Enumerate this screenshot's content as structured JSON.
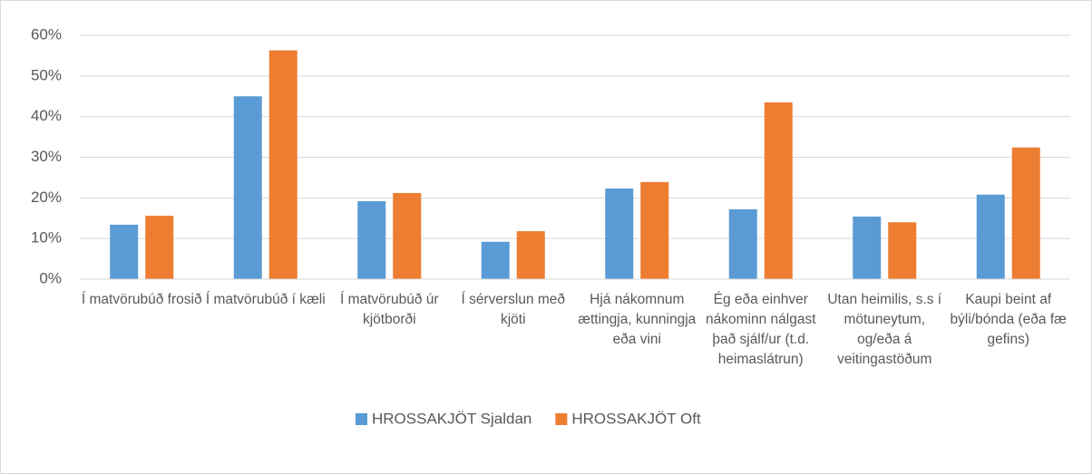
{
  "chart_data": {
    "type": "bar",
    "categories": [
      "Í matvörubúð frosið",
      "Í matvörubúð í kæli",
      "Í matvörubúð úr kjötborði",
      "Í sérverslun með kjöti",
      "Hjá nákomnum ættingja, kunningja eða vini",
      "Ég eða einhver nákominn nálgast það sjálf/ur (t.d. heimaslátrun)",
      "Utan heimilis, s.s í mötuneytum, og/eða á veitingastöðum",
      "Kaupi beint af býli/bónda (eða fæ gefins)"
    ],
    "series": [
      {
        "name": "HROSSAKJÖT Sjaldan",
        "color": "#5b9bd5",
        "values": [
          13.4,
          45,
          19.2,
          9.2,
          22.3,
          17.2,
          15.4,
          20.8
        ]
      },
      {
        "name": "HROSSAKJÖT Oft",
        "color": "#ed7d31",
        "values": [
          15.6,
          56.3,
          21.2,
          11.8,
          23.9,
          43.5,
          14,
          32.4
        ]
      }
    ],
    "ylim": [
      0,
      60
    ],
    "yticks": [
      {
        "value": 0,
        "label": "0%"
      },
      {
        "value": 10,
        "label": "10%"
      },
      {
        "value": 20,
        "label": "20%"
      },
      {
        "value": 30,
        "label": "30%"
      },
      {
        "value": 40,
        "label": "40%"
      },
      {
        "value": 50,
        "label": "50%"
      },
      {
        "value": 60,
        "label": "60%"
      }
    ],
    "grid": true,
    "legend": "bottom"
  }
}
